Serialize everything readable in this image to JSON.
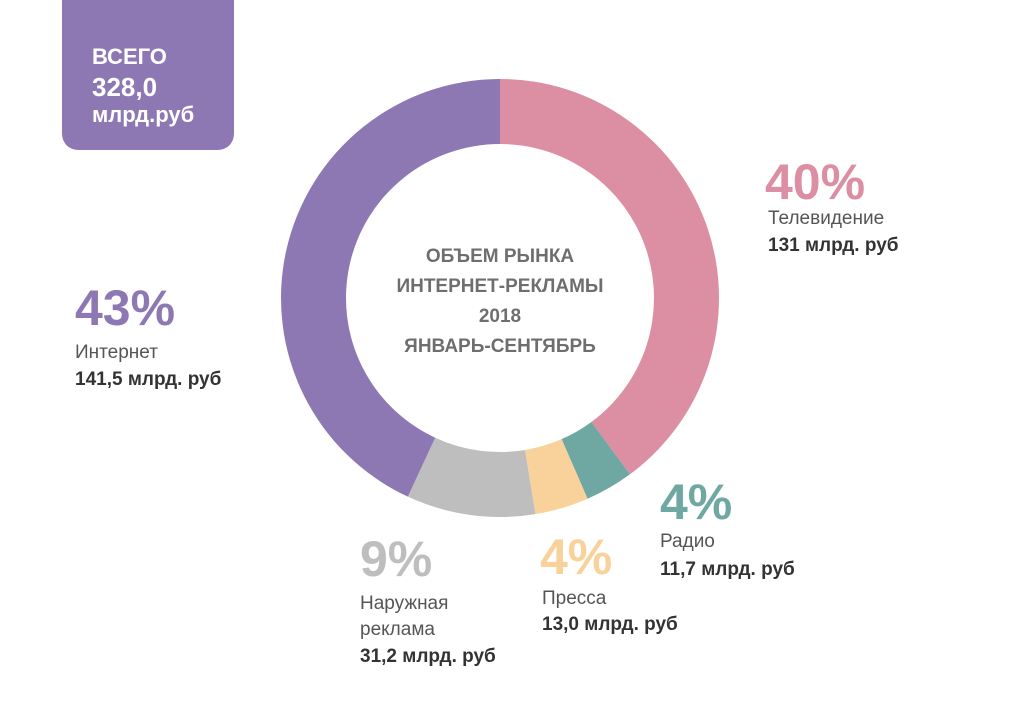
{
  "total_box": {
    "line1": "ВСЕГО",
    "line2": "328,0",
    "line3": "млрд.руб"
  },
  "center_title": [
    "ОБЪЕМ РЫНКА",
    "ИНТЕРНЕТ-РЕКЛАМЫ",
    "2018",
    "ЯНВАРЬ-СЕНТЯБРЬ"
  ],
  "colors": {
    "tv": "#dc8ea2",
    "radio": "#6fa8a2",
    "press": "#f9d29b",
    "outdoor": "#bebebe",
    "internet": "#8d78b3",
    "total_box": "#8d78b3"
  },
  "chart_data": {
    "type": "pie",
    "title": "ОБЪЕМ РЫНКА ИНТЕРНЕТ-РЕКЛАМЫ 2018 ЯНВАРЬ-СЕНТЯБРЬ",
    "total": "328,0 млрд.руб",
    "series": [
      {
        "key": "tv",
        "name": "Телевидение",
        "percent": 40,
        "value": 131,
        "value_label": "131 млрд. руб",
        "color": "#dc8ea2"
      },
      {
        "key": "radio",
        "name": "Радио",
        "percent": 4,
        "value": 11.7,
        "value_label": "11,7 млрд. руб",
        "color": "#6fa8a2"
      },
      {
        "key": "press",
        "name": "Пресса",
        "percent": 4,
        "value": 13.0,
        "value_label": "13,0 млрд. руб",
        "color": "#f9d29b"
      },
      {
        "key": "outdoor",
        "name": "Наружная реклама",
        "name_lines": [
          "Наружная",
          "реклама"
        ],
        "percent": 9,
        "value": 31.2,
        "value_label": "31,2 млрд. руб",
        "color": "#bebebe"
      },
      {
        "key": "internet",
        "name": "Интернет",
        "percent": 43,
        "value": 141.5,
        "value_label": "141,5 млрд. руб",
        "color": "#8d78b3"
      }
    ]
  },
  "labels": {
    "tv": {
      "pct": "40%",
      "name": "Телевидение",
      "value": "131 млрд. руб"
    },
    "radio": {
      "pct": "4%",
      "name": "Радио",
      "value": "11,7 млрд. руб"
    },
    "press": {
      "pct": "4%",
      "name": "Пресса",
      "value": "13,0 млрд. руб"
    },
    "outdoor": {
      "pct": "9%",
      "name1": "Наружная",
      "name2": "реклама",
      "value": "31,2 млрд. руб"
    },
    "internet": {
      "pct": "43%",
      "name": "Интернет",
      "value": "141,5 млрд. руб"
    }
  }
}
